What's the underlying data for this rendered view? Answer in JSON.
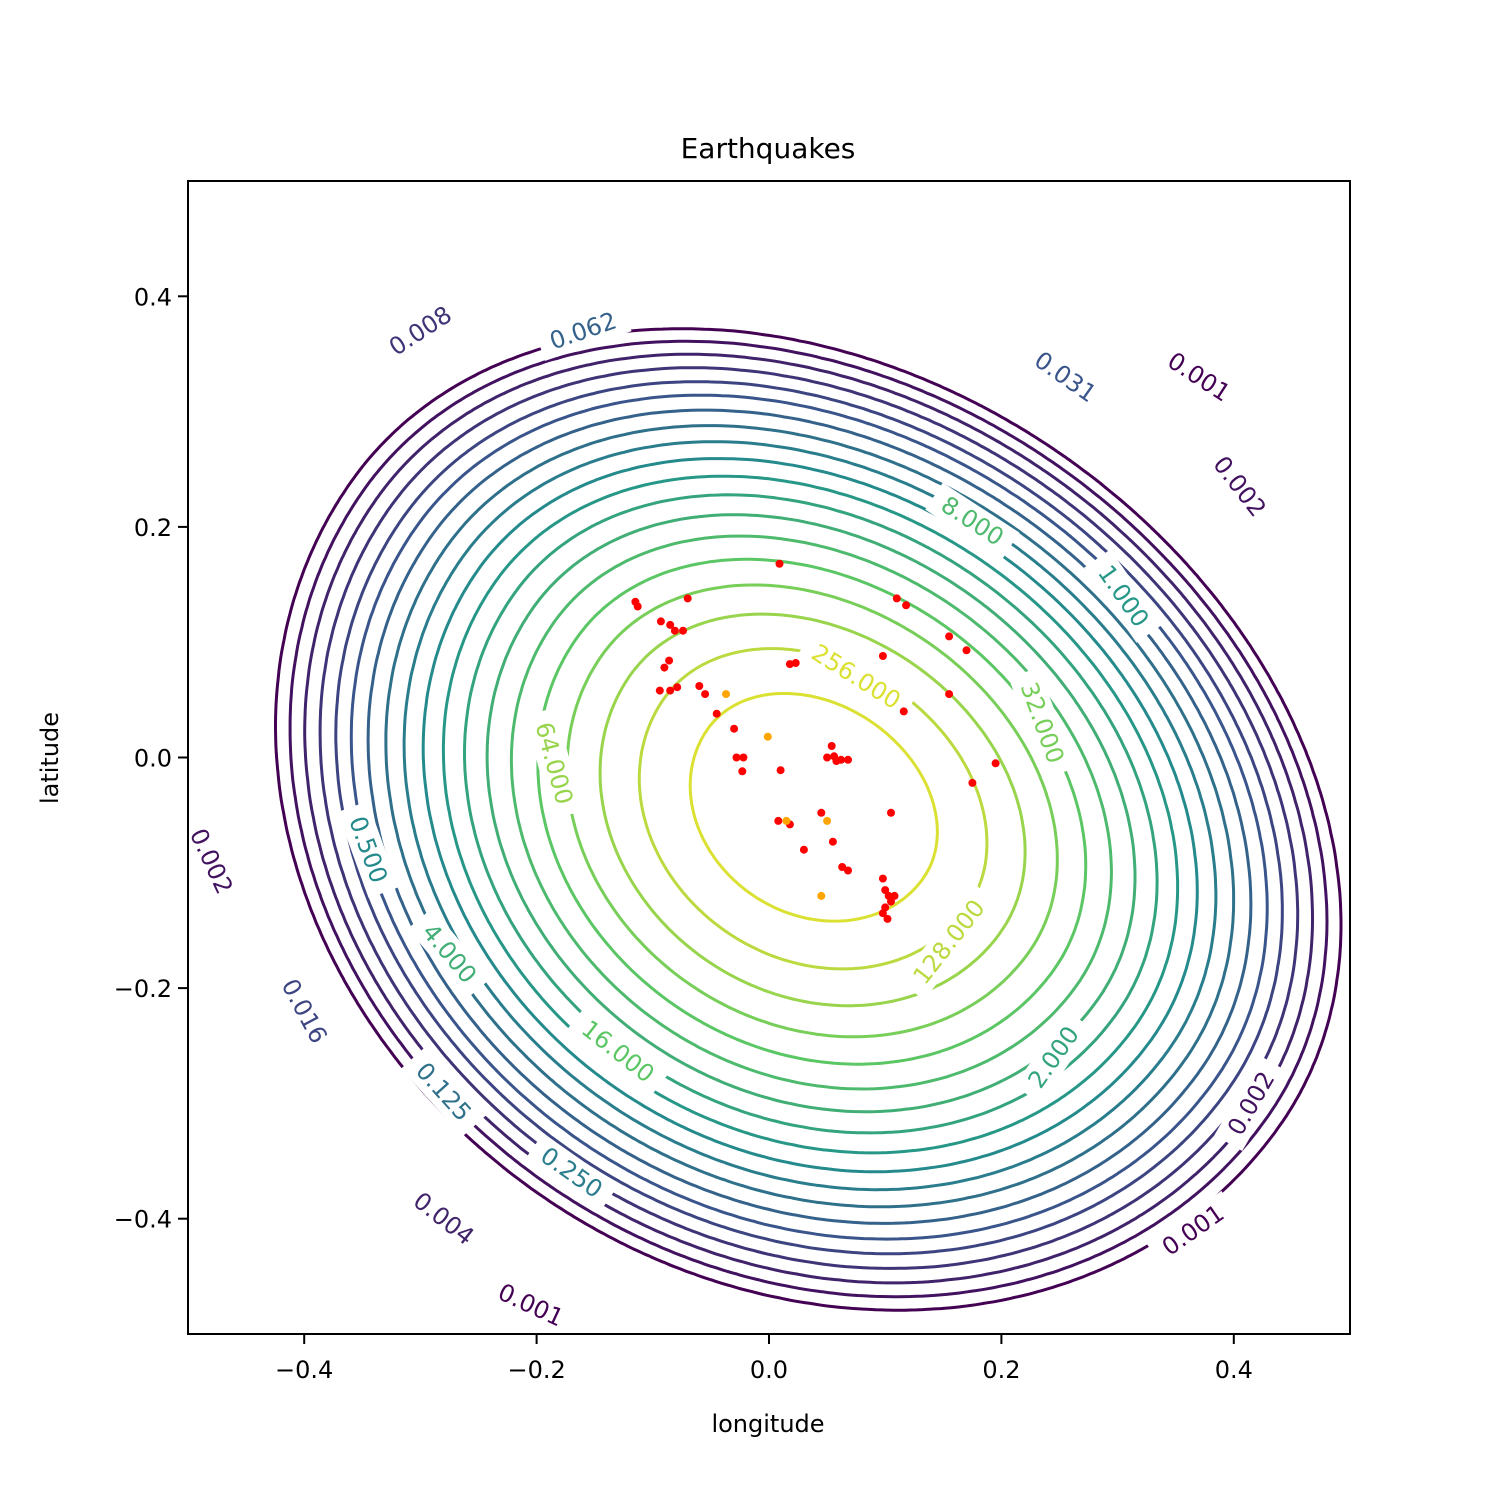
{
  "chart_data": {
    "type": "contour",
    "title": "Earthquakes",
    "xlabel": "longitude",
    "ylabel": "latitude",
    "xlim": [
      -0.5,
      0.5
    ],
    "ylim": [
      -0.5,
      0.5
    ],
    "xticks": [
      {
        "value": -0.4,
        "label": "−0.4"
      },
      {
        "value": -0.2,
        "label": "−0.2"
      },
      {
        "value": 0.0,
        "label": "0.0"
      },
      {
        "value": 0.2,
        "label": "0.2"
      },
      {
        "value": 0.4,
        "label": "0.4"
      }
    ],
    "yticks": [
      {
        "value": 0.4,
        "label": "0.4"
      },
      {
        "value": 0.2,
        "label": "0.2"
      },
      {
        "value": 0.0,
        "label": "0.0"
      },
      {
        "value": -0.2,
        "label": "−0.2"
      },
      {
        "value": -0.4,
        "label": "−0.4"
      }
    ],
    "grid": false,
    "colormap": "viridis",
    "contour_levels": [
      0.001,
      0.002,
      0.004,
      0.008,
      0.016,
      0.031,
      0.062,
      0.125,
      0.25,
      0.5,
      1.0,
      2.0,
      4.0,
      8.0,
      16.0,
      32.0,
      64.0,
      128.0,
      256.0
    ],
    "contour_labels": [
      {
        "text": "0.001",
        "x": 0.37,
        "y": 0.33,
        "angle": 33
      },
      {
        "text": "0.002",
        "x": 0.405,
        "y": 0.235,
        "angle": 52
      },
      {
        "text": "0.008",
        "x": -0.3,
        "y": 0.37,
        "angle": -33
      },
      {
        "text": "0.062",
        "x": -0.16,
        "y": 0.37,
        "angle": -19
      },
      {
        "text": "0.031",
        "x": 0.255,
        "y": 0.33,
        "angle": 35
      },
      {
        "text": "8.000",
        "x": 0.175,
        "y": 0.205,
        "angle": 33
      },
      {
        "text": "1.000",
        "x": 0.305,
        "y": 0.14,
        "angle": 55
      },
      {
        "text": "32.000",
        "x": 0.235,
        "y": 0.03,
        "angle": 70
      },
      {
        "text": "256.000",
        "x": 0.075,
        "y": 0.07,
        "angle": 32
      },
      {
        "text": "64.000",
        "x": -0.185,
        "y": -0.005,
        "angle": 75
      },
      {
        "text": "128.000",
        "x": 0.155,
        "y": -0.16,
        "angle": -52
      },
      {
        "text": "0.500",
        "x": -0.345,
        "y": -0.08,
        "angle": 70
      },
      {
        "text": "0.002",
        "x": -0.48,
        "y": -0.09,
        "angle": 65
      },
      {
        "text": "4.000",
        "x": -0.275,
        "y": -0.17,
        "angle": 50
      },
      {
        "text": "16.000",
        "x": -0.13,
        "y": -0.255,
        "angle": 38
      },
      {
        "text": "0.016",
        "x": -0.4,
        "y": -0.22,
        "angle": 62
      },
      {
        "text": "0.125",
        "x": -0.28,
        "y": -0.29,
        "angle": 48
      },
      {
        "text": "0.250",
        "x": -0.17,
        "y": -0.36,
        "angle": 35
      },
      {
        "text": "2.000",
        "x": 0.245,
        "y": -0.26,
        "angle": -55
      },
      {
        "text": "0.002",
        "x": 0.415,
        "y": -0.3,
        "angle": -60
      },
      {
        "text": "0.004",
        "x": -0.28,
        "y": -0.4,
        "angle": 38
      },
      {
        "text": "0.001",
        "x": 0.365,
        "y": -0.41,
        "angle": -35
      },
      {
        "text": "0.001",
        "x": -0.205,
        "y": -0.475,
        "angle": 25
      }
    ],
    "series": [
      {
        "color": "#ff0000",
        "points": [
          [
            -0.115,
            0.135
          ],
          [
            -0.113,
            0.131
          ],
          [
            -0.093,
            0.118
          ],
          [
            -0.085,
            0.115
          ],
          [
            -0.081,
            0.11
          ],
          [
            -0.074,
            0.11
          ],
          [
            -0.07,
            0.138
          ],
          [
            -0.086,
            0.084
          ],
          [
            -0.09,
            0.078
          ],
          [
            -0.079,
            0.061
          ],
          [
            -0.094,
            0.058
          ],
          [
            -0.085,
            0.058
          ],
          [
            -0.06,
            0.062
          ],
          [
            -0.055,
            0.055
          ],
          [
            -0.045,
            0.038
          ],
          [
            -0.03,
            0.025
          ],
          [
            -0.028,
            0.0
          ],
          [
            -0.022,
            0.0
          ],
          [
            -0.023,
            -0.012
          ],
          [
            0.009,
            0.168
          ],
          [
            0.018,
            0.081
          ],
          [
            0.023,
            0.082
          ],
          [
            0.01,
            -0.011
          ],
          [
            0.05,
            0.0
          ],
          [
            0.054,
            0.01
          ],
          [
            0.056,
            0.001
          ],
          [
            0.058,
            -0.003
          ],
          [
            0.062,
            -0.002
          ],
          [
            0.068,
            -0.002
          ],
          [
            0.045,
            -0.048
          ],
          [
            0.008,
            -0.055
          ],
          [
            0.018,
            -0.058
          ],
          [
            0.055,
            -0.073
          ],
          [
            0.03,
            -0.08
          ],
          [
            0.063,
            -0.095
          ],
          [
            0.068,
            -0.098
          ],
          [
            0.098,
            -0.105
          ],
          [
            0.1,
            -0.115
          ],
          [
            0.103,
            -0.12
          ],
          [
            0.108,
            -0.12
          ],
          [
            0.105,
            -0.125
          ],
          [
            0.1,
            -0.13
          ],
          [
            0.098,
            -0.135
          ],
          [
            0.102,
            -0.14
          ],
          [
            0.105,
            -0.048
          ],
          [
            0.098,
            0.088
          ],
          [
            0.11,
            0.138
          ],
          [
            0.118,
            0.132
          ],
          [
            0.116,
            0.04
          ],
          [
            0.155,
            0.105
          ],
          [
            0.155,
            0.055
          ],
          [
            0.17,
            0.093
          ],
          [
            0.175,
            -0.022
          ],
          [
            0.195,
            -0.005
          ]
        ]
      },
      {
        "color": "#ffa500",
        "points": [
          [
            -0.037,
            0.055
          ],
          [
            -0.001,
            0.018
          ],
          [
            0.015,
            -0.055
          ],
          [
            0.05,
            -0.055
          ],
          [
            0.045,
            -0.12
          ]
        ]
      }
    ]
  }
}
